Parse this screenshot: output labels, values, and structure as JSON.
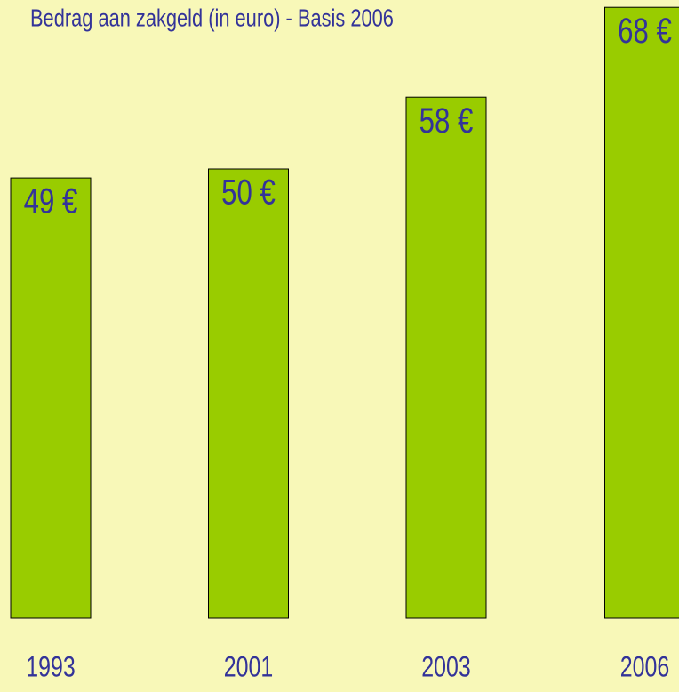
{
  "chart_data": {
    "type": "bar",
    "title": "Bedrag aan zakgeld (in euro) - Basis 2006",
    "categories": [
      "1993",
      "2001",
      "2003",
      "2006"
    ],
    "values": [
      49,
      50,
      58,
      68
    ],
    "value_labels": [
      "49 €",
      "50 €",
      "58 €",
      "68 €"
    ],
    "color": "#99cc00"
  }
}
